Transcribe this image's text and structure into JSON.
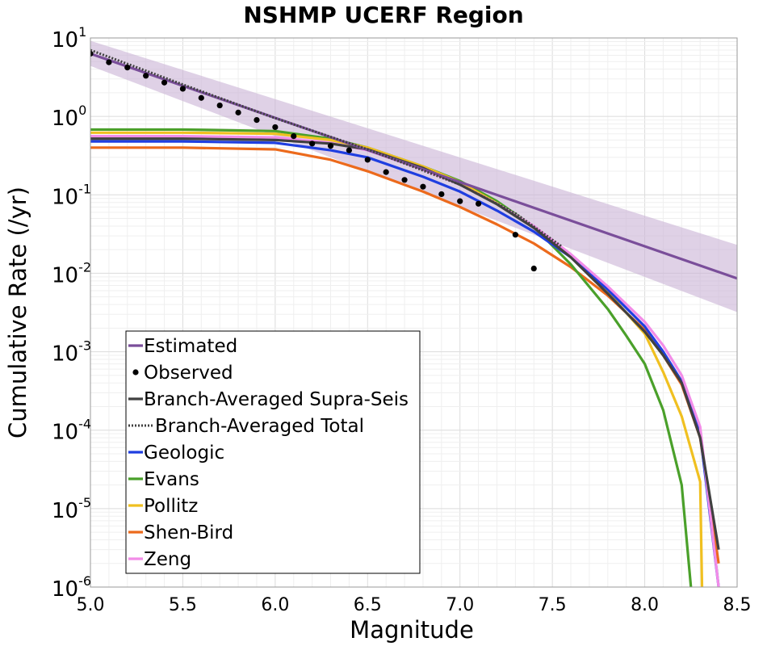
{
  "chart_data": {
    "type": "line",
    "title": "NSHMP UCERF Region",
    "xlabel": "Magnitude",
    "ylabel": "Cumulative Rate (/yr)",
    "xlim": [
      5.0,
      8.5
    ],
    "ylim": [
      1e-06,
      10
    ],
    "yscale": "log",
    "grid": true,
    "legend_position": "bottom-left",
    "x_ticks": [
      "5.0",
      "5.5",
      "6.0",
      "6.5",
      "7.0",
      "7.5",
      "8.0",
      "8.5"
    ],
    "y_ticks": [
      {
        "base": "10",
        "exp": "1"
      },
      {
        "base": "10",
        "exp": "0"
      },
      {
        "base": "10",
        "exp": "-1"
      },
      {
        "base": "10",
        "exp": "-2"
      },
      {
        "base": "10",
        "exp": "-3"
      },
      {
        "base": "10",
        "exp": "-4"
      },
      {
        "base": "10",
        "exp": "-5"
      },
      {
        "base": "10",
        "exp": "-6"
      }
    ],
    "band": {
      "series": "Estimated",
      "color": "#c9b3d6",
      "x": [
        5.0,
        8.5
      ],
      "upper": [
        9.2,
        0.023
      ],
      "lower": [
        4.4,
        0.0032
      ]
    },
    "series": [
      {
        "name": "Estimated",
        "style": "line",
        "color": "#7a4e9a",
        "x": [
          5.0,
          8.5
        ],
        "y": [
          6.3,
          0.0086
        ]
      },
      {
        "name": "Observed",
        "style": "points",
        "color": "#000000",
        "x": [
          5.0,
          5.1,
          5.2,
          5.3,
          5.4,
          5.5,
          5.6,
          5.7,
          5.8,
          5.9,
          6.0,
          6.1,
          6.2,
          6.3,
          6.4,
          6.5,
          6.6,
          6.7,
          6.8,
          6.9,
          7.0,
          7.1,
          7.3,
          7.4
        ],
        "y": [
          6.3,
          4.9,
          4.2,
          3.3,
          2.7,
          2.25,
          1.72,
          1.38,
          1.12,
          0.9,
          0.73,
          0.56,
          0.45,
          0.42,
          0.37,
          0.28,
          0.195,
          0.155,
          0.127,
          0.102,
          0.083,
          0.077,
          0.031,
          0.0115
        ]
      },
      {
        "name": "Branch-Averaged Supra-Seis",
        "style": "line",
        "color": "#404040",
        "x": [
          5.0,
          5.5,
          6.0,
          6.3,
          6.5,
          6.8,
          7.0,
          7.2,
          7.4,
          7.6,
          7.8,
          8.0,
          8.1,
          8.2,
          8.3,
          8.4
        ],
        "y": [
          0.52,
          0.52,
          0.5,
          0.45,
          0.38,
          0.22,
          0.135,
          0.076,
          0.038,
          0.016,
          0.0055,
          0.0018,
          0.0009,
          0.0004,
          8e-05,
          3e-06
        ]
      },
      {
        "name": "Branch-Averaged Total",
        "style": "dotted",
        "color": "#404040",
        "x": [
          5.0,
          5.5,
          6.0,
          6.5,
          7.0,
          7.3,
          7.55
        ],
        "y": [
          7.0,
          2.55,
          0.95,
          0.38,
          0.135,
          0.058,
          0.022
        ]
      },
      {
        "name": "Geologic",
        "style": "line",
        "color": "#1f3ee0",
        "x": [
          5.0,
          5.5,
          6.0,
          6.3,
          6.5,
          6.8,
          7.0,
          7.2,
          7.4,
          7.6,
          7.8,
          8.0,
          8.1,
          8.2,
          8.3,
          8.4
        ],
        "y": [
          0.48,
          0.48,
          0.46,
          0.37,
          0.3,
          0.17,
          0.11,
          0.063,
          0.034,
          0.016,
          0.0062,
          0.0021,
          0.001,
          0.00042,
          9e-05,
          1e-06
        ]
      },
      {
        "name": "Evans",
        "style": "line",
        "color": "#4aa02a",
        "x": [
          5.0,
          5.5,
          6.0,
          6.3,
          6.5,
          6.8,
          7.0,
          7.2,
          7.4,
          7.6,
          7.8,
          7.9,
          8.0,
          8.1,
          8.2,
          8.25
        ],
        "y": [
          0.68,
          0.68,
          0.65,
          0.52,
          0.4,
          0.23,
          0.15,
          0.083,
          0.039,
          0.013,
          0.0035,
          0.0016,
          0.0007,
          0.00018,
          2e-05,
          1e-06
        ]
      },
      {
        "name": "Pollitz",
        "style": "line",
        "color": "#f0c020",
        "x": [
          5.0,
          5.5,
          6.0,
          6.3,
          6.5,
          6.8,
          7.0,
          7.2,
          7.4,
          7.6,
          7.8,
          8.0,
          8.1,
          8.2,
          8.3,
          8.31
        ],
        "y": [
          0.62,
          0.62,
          0.6,
          0.5,
          0.4,
          0.23,
          0.145,
          0.078,
          0.038,
          0.016,
          0.0058,
          0.0017,
          0.00055,
          0.00015,
          2.2e-05,
          1e-06
        ]
      },
      {
        "name": "Shen-Bird",
        "style": "line",
        "color": "#ec6a1c",
        "x": [
          5.0,
          5.5,
          6.0,
          6.3,
          6.5,
          6.8,
          7.0,
          7.2,
          7.4,
          7.6,
          7.8,
          8.0,
          8.1,
          8.2,
          8.3,
          8.4
        ],
        "y": [
          0.4,
          0.4,
          0.38,
          0.28,
          0.2,
          0.11,
          0.07,
          0.042,
          0.024,
          0.012,
          0.0052,
          0.0019,
          0.0009,
          0.00038,
          8e-05,
          2e-06
        ]
      },
      {
        "name": "Zeng",
        "style": "line",
        "color": "#f28ce8",
        "x": [
          5.0,
          5.5,
          6.0,
          6.3,
          6.5,
          6.8,
          7.0,
          7.2,
          7.4,
          7.6,
          7.8,
          8.0,
          8.1,
          8.2,
          8.3,
          8.4
        ],
        "y": [
          0.56,
          0.56,
          0.54,
          0.46,
          0.37,
          0.21,
          0.135,
          0.077,
          0.04,
          0.0175,
          0.0068,
          0.0024,
          0.0012,
          0.0005,
          0.00011,
          1e-06
        ]
      }
    ]
  }
}
